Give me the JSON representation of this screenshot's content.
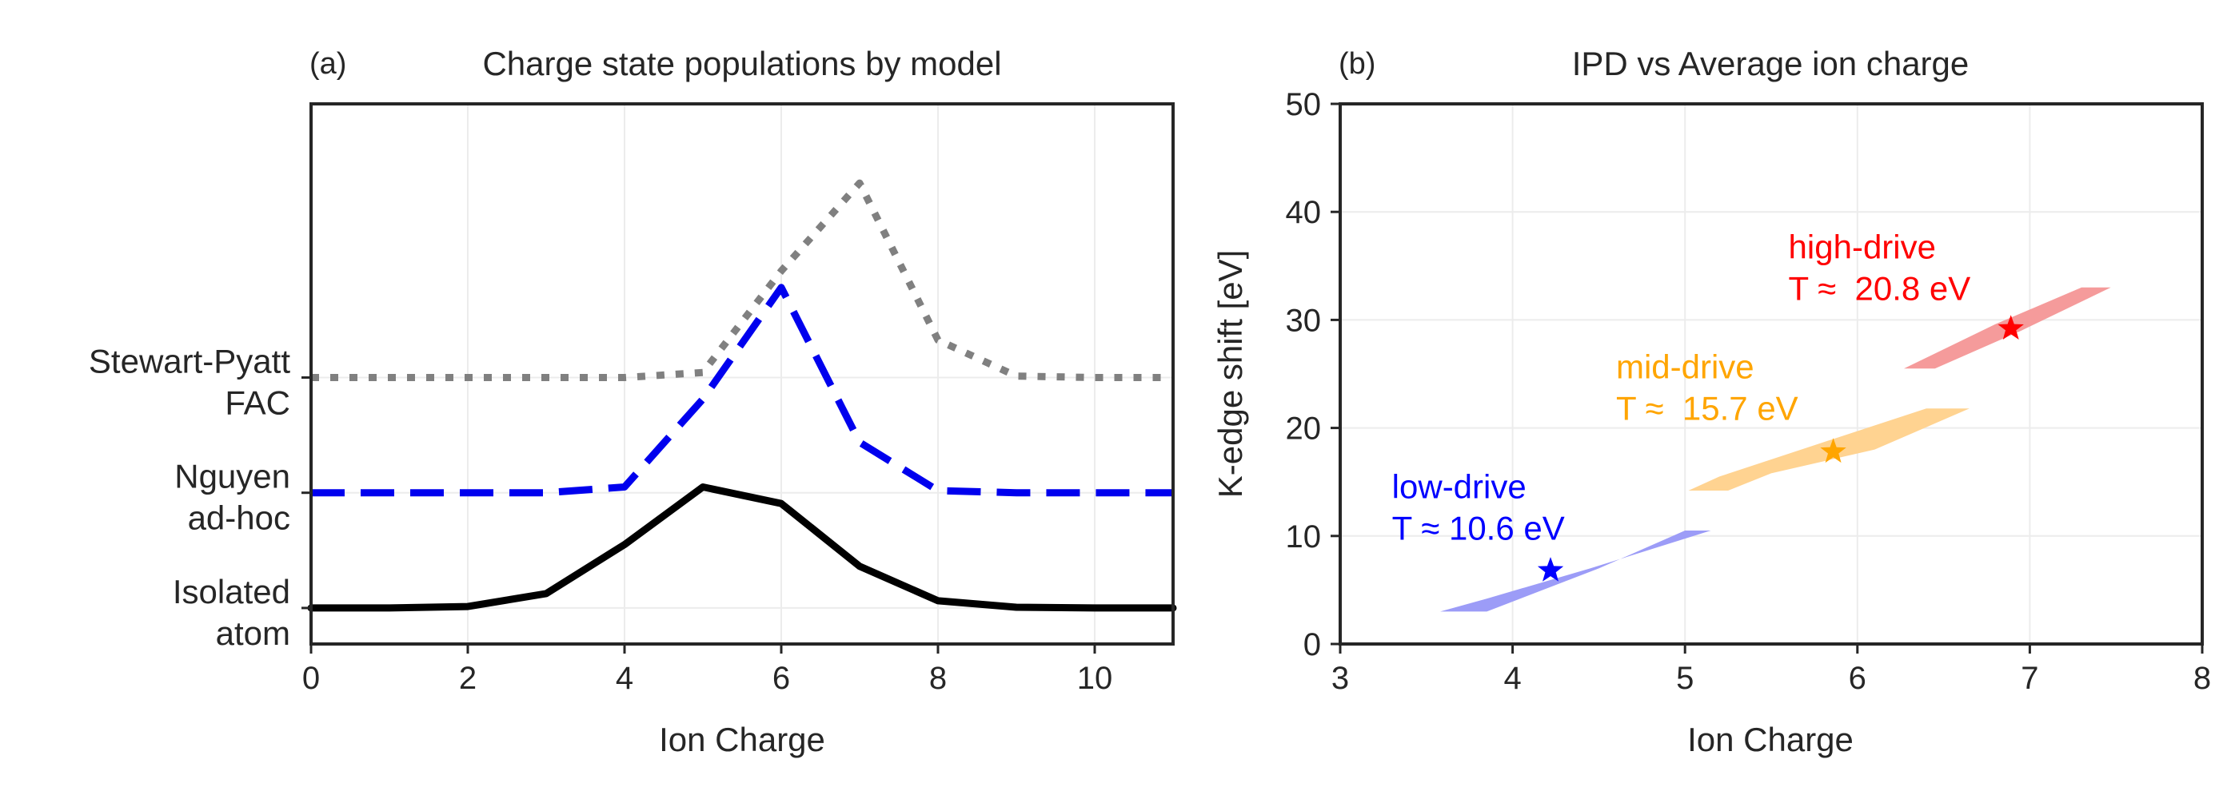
{
  "chart_data": [
    {
      "type": "line",
      "panel_label": "(a)",
      "title": "Charge state populations by model",
      "xlabel": "Ion Charge",
      "ylabel": "",
      "xlim": [
        0,
        11
      ],
      "ylim": [
        -0.05,
        0.7
      ],
      "xticks": [
        0,
        2,
        4,
        6,
        8,
        10
      ],
      "grid": true,
      "categories": [
        {
          "label": [
            "Isolated",
            "atom"
          ],
          "offset": 0.0
        },
        {
          "label": [
            "Nguyen",
            "ad-hoc"
          ],
          "offset": 0.16
        },
        {
          "label": [
            "Stewart-Pyatt",
            "FAC"
          ],
          "offset": 0.32
        }
      ],
      "series": [
        {
          "model": "Isolated atom",
          "color": "#000000",
          "style": "solid",
          "offset": 0.0,
          "x": [
            0,
            1,
            2,
            3,
            4,
            5,
            6,
            7,
            8,
            9,
            10,
            11
          ],
          "y": [
            0.0,
            0.0,
            0.002,
            0.02,
            0.088,
            0.168,
            0.145,
            0.058,
            0.01,
            0.001,
            0.0,
            0.0
          ]
        },
        {
          "model": "Nguyen ad-hoc",
          "color": "#0000ee",
          "style": "dashed",
          "offset": 0.16,
          "x": [
            0,
            1,
            2,
            3,
            4,
            5,
            6,
            7,
            8,
            9,
            10,
            11
          ],
          "y": [
            0.0,
            0.0,
            0.0,
            0.0,
            0.008,
            0.13,
            0.285,
            0.07,
            0.003,
            0.0,
            0.0,
            0.0
          ]
        },
        {
          "model": "Stewart-Pyatt FAC",
          "color": "#808080",
          "style": "dotted",
          "offset": 0.32,
          "x": [
            0,
            1,
            2,
            3,
            4,
            5,
            6,
            7,
            8,
            9,
            10,
            11
          ],
          "y": [
            0.0,
            0.0,
            0.0,
            0.0,
            0.0,
            0.007,
            0.148,
            0.27,
            0.052,
            0.002,
            0.0,
            0.0
          ]
        }
      ]
    },
    {
      "type": "scatter",
      "panel_label": "(b)",
      "title": "IPD vs Average ion charge",
      "xlabel": "Ion Charge",
      "ylabel": "K-edge shift [eV]",
      "xlim": [
        3,
        8
      ],
      "ylim": [
        0,
        50
      ],
      "xticks": [
        3,
        4,
        5,
        6,
        7,
        8
      ],
      "yticks": [
        0,
        10,
        20,
        30,
        40,
        50
      ],
      "grid": true,
      "groups": [
        {
          "label": "low-drive",
          "temperature": "T ≈ 10.6 eV",
          "color": "#0000ff",
          "band_color": "#9c9cf7",
          "star": {
            "x": 4.22,
            "y": 6.8
          },
          "band": [
            [
              3.58,
              3.0
            ],
            [
              3.85,
              3.0
            ],
            [
              4.5,
              7.0
            ],
            [
              5.0,
              10.5
            ],
            [
              5.15,
              10.5
            ],
            [
              4.45,
              7.0
            ],
            [
              3.85,
              4.2
            ]
          ],
          "annotation_pos": [
            3.3,
            13.5
          ]
        },
        {
          "label": "mid-drive",
          "temperature": "T ≈  15.7 eV",
          "color": "#ffa500",
          "band_color": "#ffd391",
          "star": {
            "x": 5.86,
            "y": 17.8
          },
          "band": [
            [
              5.02,
              14.2
            ],
            [
              5.25,
              14.2
            ],
            [
              5.5,
              15.8
            ],
            [
              6.1,
              18.0
            ],
            [
              6.65,
              21.8
            ],
            [
              6.4,
              21.8
            ],
            [
              5.75,
              18.4
            ],
            [
              5.2,
              15.5
            ]
          ],
          "annotation_pos": [
            4.6,
            24.6
          ]
        },
        {
          "label": "high-drive",
          "temperature": "T ≈  20.8 eV",
          "color": "#ff0000",
          "band_color": "#f59b9b",
          "star": {
            "x": 6.89,
            "y": 29.2
          },
          "band": [
            [
              6.27,
              25.5
            ],
            [
              6.45,
              25.5
            ],
            [
              6.95,
              29.0
            ],
            [
              7.47,
              33.0
            ],
            [
              7.3,
              33.0
            ],
            [
              6.8,
              29.6
            ]
          ],
          "annotation_pos": [
            5.6,
            35.7
          ]
        }
      ]
    }
  ]
}
